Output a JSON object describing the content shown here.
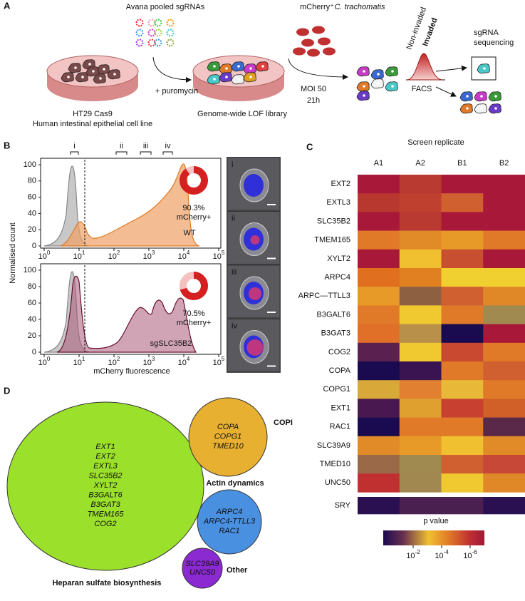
{
  "panel_a": {
    "label": "A",
    "sgrna_title": "Avana pooled sgRNAs",
    "puromycin": "+ puromycin",
    "dish1_title": "HT29 Cas9",
    "dish1_subtitle": "Human intestinal epithelial cell line",
    "dish2_title": "Genome-wide LOF library",
    "mcherry": "mCherry⁺",
    "pathogen": "C. trachomatis",
    "moi": "MOI 50",
    "time": "21h",
    "non_invaded": "Non-invaded",
    "invaded": "Invaded",
    "facs": "FACS",
    "sequencing": [
      "sgRNA",
      "sequencing"
    ]
  },
  "panel_b": {
    "label": "B",
    "y_label": "Normalised count",
    "x_label": "mCherry fluorescence",
    "ylim": [
      0,
      100
    ],
    "yticks": [
      0,
      20,
      40,
      60,
      80,
      100
    ],
    "xticks": [
      {
        "base": "10",
        "exp": "0"
      },
      {
        "base": "10",
        "exp": "1"
      },
      {
        "base": "10",
        "exp": "2"
      },
      {
        "base": "10",
        "exp": "3"
      },
      {
        "base": "10",
        "exp": "4"
      },
      {
        "base": "10",
        "exp": "5"
      }
    ],
    "gates": [
      "i",
      "ii",
      "iii",
      "iv"
    ],
    "plots": [
      {
        "name": "WT",
        "percent": 90.3,
        "percent_label": "90.3%",
        "positive_label": "mCherry+"
      },
      {
        "name": "sgSLC35B2",
        "percent": 70.5,
        "percent_label": "70.5%",
        "positive_label": "mCherry+"
      }
    ],
    "images": [
      "i",
      "ii",
      "iii",
      "iv"
    ]
  },
  "panel_c": {
    "label": "C",
    "title": "Screen replicate",
    "columns": [
      "A1",
      "A2",
      "B1",
      "B2"
    ],
    "rows": [
      {
        "name": "EXT2",
        "color": "#4a9a2a",
        "cells": [
          "#a81838",
          "#b83a30",
          "#a81838",
          "#a81838"
        ]
      },
      {
        "name": "EXTL3",
        "color": "#4a9a2a",
        "cells": [
          "#b83830",
          "#c04030",
          "#d06030",
          "#a81838"
        ]
      },
      {
        "name": "SLC35B2",
        "color": "#4a9a2a",
        "cells": [
          "#a81838",
          "#b83a30",
          "#a81838",
          "#a81838"
        ]
      },
      {
        "name": "TMEM165",
        "color": "#4a9a2a",
        "cells": [
          "#e07a28",
          "#e08a28",
          "#e89a28",
          "#e07a28"
        ]
      },
      {
        "name": "XYLT2",
        "color": "#4a9a2a",
        "cells": [
          "#a81838",
          "#f0c030",
          "#c85030",
          "#a81838"
        ]
      },
      {
        "name": "ARPC4",
        "color": "#2a50b0",
        "cells": [
          "#e07020",
          "#e08020",
          "#f0d030",
          "#f0d030"
        ]
      },
      {
        "name": "ARPC—TTLL3",
        "color": "#2a50b0",
        "cells": [
          "#e89a28",
          "#8c6040",
          "#d06030",
          "#e08828"
        ]
      },
      {
        "name": "B3GALT6",
        "color": "#4a9a2a",
        "cells": [
          "#e07a28",
          "#f0c830",
          "#e07a28",
          "#a08a50"
        ]
      },
      {
        "name": "B3GAT3",
        "color": "#4a9a2a",
        "cells": [
          "#e07028",
          "#b8904a",
          "#1a0a50",
          "#a81838"
        ]
      },
      {
        "name": "COG2",
        "color": "#4a9a2a",
        "cells": [
          "#5a2050",
          "#f0c830",
          "#c84830",
          "#e07a28"
        ]
      },
      {
        "name": "COPA",
        "color": "#d8782a",
        "cells": [
          "#1a0a50",
          "#3a1450",
          "#e07a28",
          "#d06030"
        ]
      },
      {
        "name": "COPG1",
        "color": "#d8782a",
        "cells": [
          "#d8a838",
          "#e08030",
          "#e8b838",
          "#e07a28"
        ]
      },
      {
        "name": "EXT1",
        "color": "#4a9a2a",
        "cells": [
          "#4a1850",
          "#e0a030",
          "#c84030",
          "#d06028"
        ]
      },
      {
        "name": "RAC1",
        "color": "#2a50b0",
        "cells": [
          "#1a0a50",
          "#e07a28",
          "#e07a28",
          "#5a2848"
        ]
      },
      {
        "name": "SLC39A9",
        "color": "#5a2a8a",
        "cells": [
          "#e08a28",
          "#e89a28",
          "#f0c030",
          "#e08a28"
        ]
      },
      {
        "name": "TMED10",
        "color": "#c05a20",
        "cells": [
          "#9a6a48",
          "#a08a50",
          "#d06030",
          "#c84838"
        ]
      },
      {
        "name": "UNC50",
        "color": "#5a2a8a",
        "cells": [
          "#c03030",
          "#a08850",
          "#f0c830",
          "#e08828"
        ]
      }
    ],
    "control": {
      "name": "SRY",
      "color": "#000000",
      "cells": [
        "#2a1050",
        "#4a2050",
        "#4a2050",
        "#2a1050"
      ]
    },
    "legend_title": "p value",
    "legend_ticks": [
      {
        "base": "10",
        "exp": "-2"
      },
      {
        "base": "10",
        "exp": "-4"
      },
      {
        "base": "10",
        "exp": "-6"
      }
    ]
  },
  "panel_d": {
    "label": "D",
    "groups": [
      {
        "name": "Heparan sulfate biosynthesis",
        "color": "#9be02a",
        "text_color": "#8ed02a",
        "genes": [
          "EXT1",
          "EXT2",
          "EXTL3",
          "SLC35B2",
          "XYLT2",
          "B3GALT6",
          "B3GAT3",
          "TMEM165",
          "COG2"
        ]
      },
      {
        "name": "COPI",
        "color": "#e8b030",
        "text_color": "#e8a020",
        "genes": [
          "COPA",
          "COPG1",
          "TMED10"
        ]
      },
      {
        "name": "Actin dynamics",
        "color": "#4a90e0",
        "text_color": "#3a8ae0",
        "genes": [
          "ARPC4",
          "ARPC4-TTLL3",
          "RAC1"
        ]
      },
      {
        "name": "Other",
        "color": "#8a2ad0",
        "text_color": "#8a2ad0",
        "genes": [
          "SLC39A9",
          "UNC50"
        ]
      }
    ]
  }
}
